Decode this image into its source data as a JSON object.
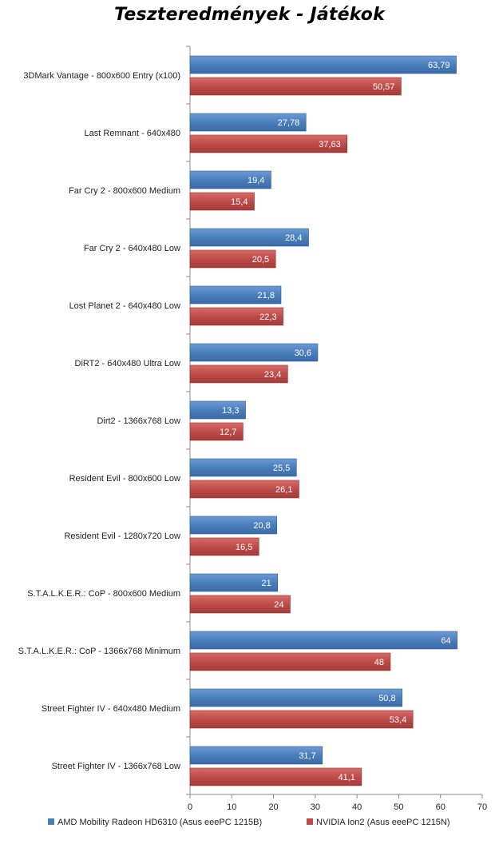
{
  "chart_data": {
    "type": "bar",
    "orientation": "horizontal",
    "title": "Teszteredmények - Játékok",
    "categories": [
      "3DMark Vantage - 800x600 Entry (x100)",
      "Last Remnant - 640x480",
      "Far Cry 2 - 800x600 Medium",
      "Far Cry 2 - 640x480 Low",
      "Lost Planet 2 - 640x480 Low",
      "DiRT2 - 640x480 Ultra Low",
      "Dirt2 - 1366x768 Low",
      "Resident Evil - 800x600 Low",
      "Resident Evil - 1280x720 Low",
      "S.T.A.L.K.E.R.: CoP - 800x600 Medium",
      "S.T.A.L.K.E.R.: CoP - 1366x768 Minimum",
      "Street Fighter IV - 640x480 Medium",
      "Street Fighter IV - 1366x768 Low"
    ],
    "series": [
      {
        "name": "AMD Mobility Radeon HD6310 (Asus eeePC 1215B)",
        "color": "#4a7ebb",
        "values": [
          63.79,
          27.78,
          19.4,
          28.4,
          21.8,
          30.6,
          13.3,
          25.5,
          20.8,
          21,
          64,
          50.8,
          31.7
        ],
        "labels": [
          "63,79",
          "27,78",
          "19,4",
          "28,4",
          "21,8",
          "30,6",
          "13,3",
          "25,5",
          "20,8",
          "21",
          "64",
          "50,8",
          "31,7"
        ]
      },
      {
        "name": "NVIDIA Ion2 (Asus eeePC 1215N)",
        "color": "#be4b48",
        "values": [
          50.57,
          37.63,
          15.4,
          20.5,
          22.3,
          23.4,
          12.7,
          26.1,
          16.5,
          24,
          48,
          53.4,
          41.1
        ],
        "labels": [
          "50,57",
          "37,63",
          "15,4",
          "20,5",
          "22,3",
          "23,4",
          "12,7",
          "26,1",
          "16,5",
          "24",
          "48",
          "53,4",
          "41,1"
        ]
      }
    ],
    "xlim": [
      0,
      70
    ],
    "xticks": [
      "0",
      "10",
      "20",
      "30",
      "40",
      "50",
      "60",
      "70"
    ],
    "grid": false,
    "legend_position": "bottom"
  }
}
